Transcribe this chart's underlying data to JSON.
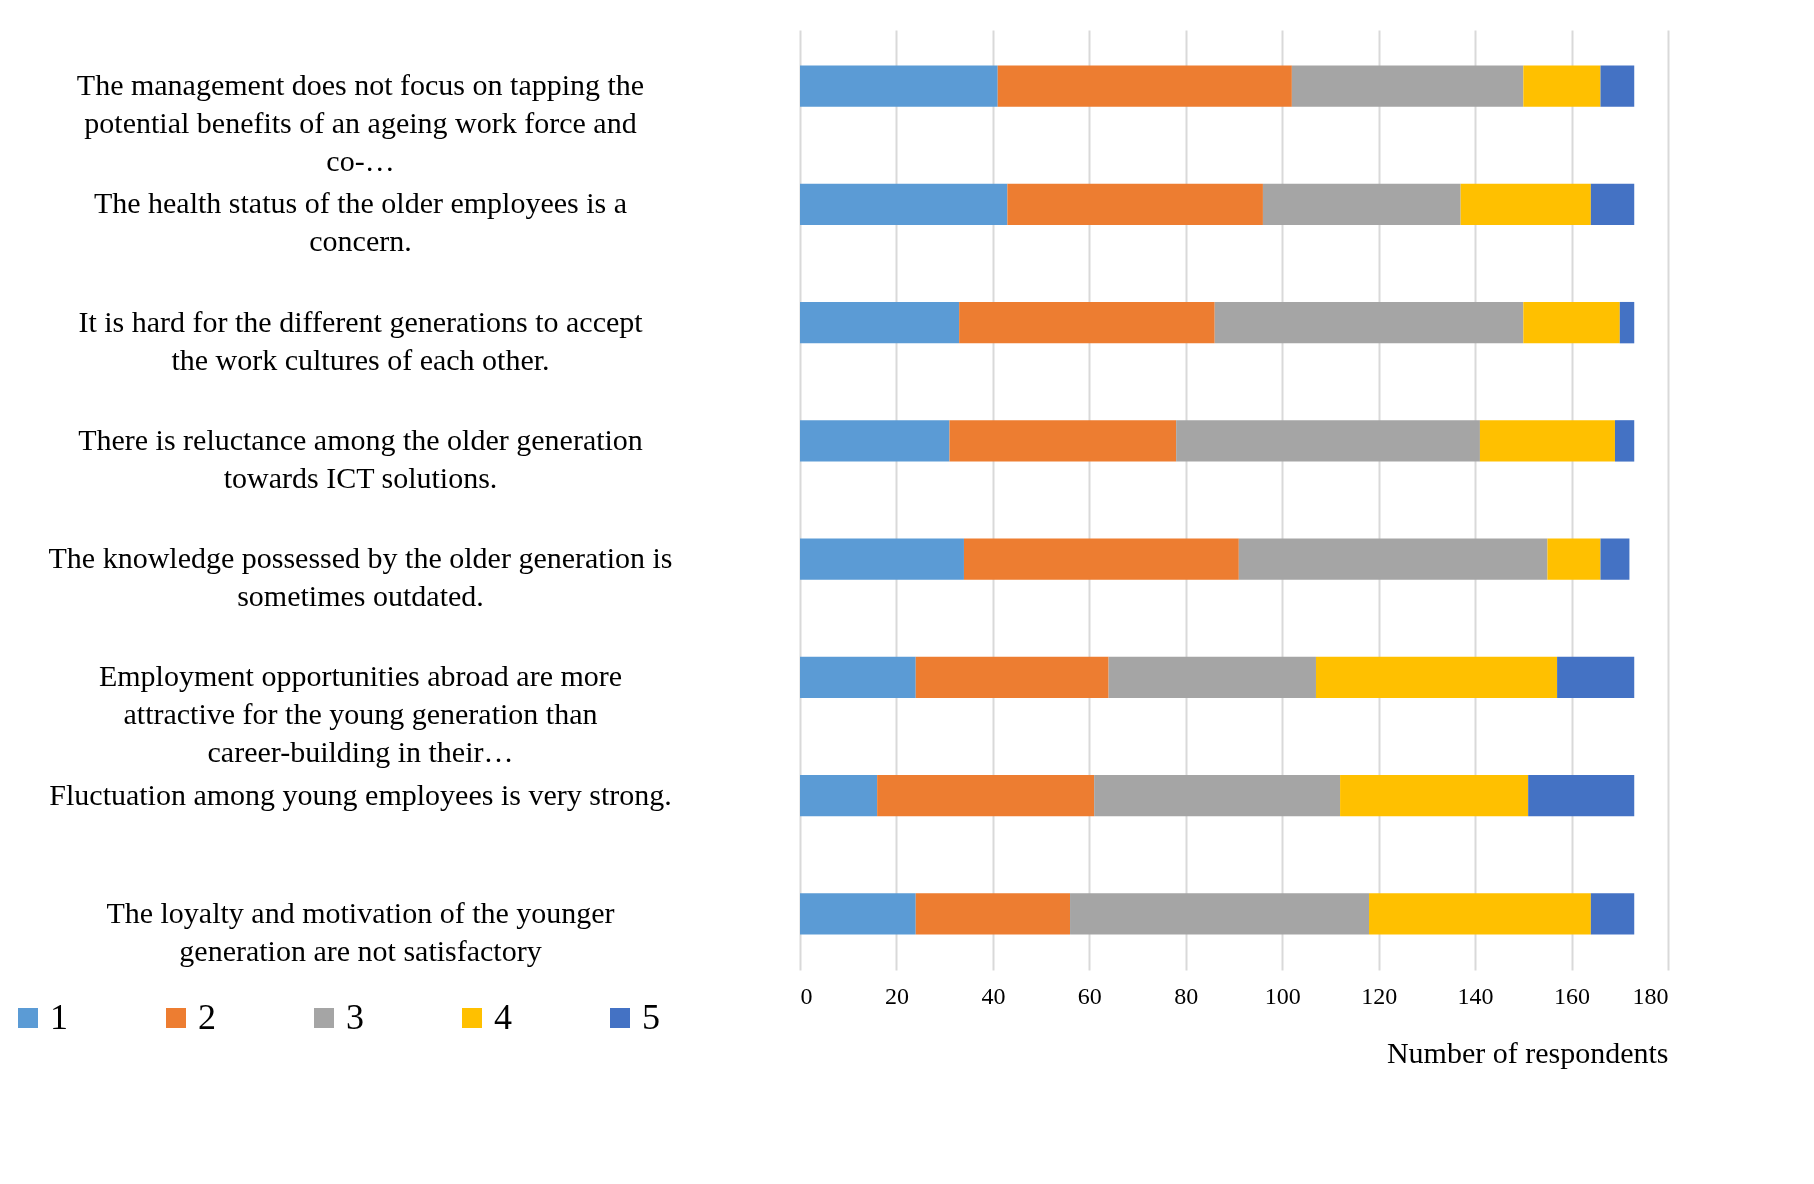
{
  "chart_data": {
    "type": "bar",
    "orientation": "horizontal",
    "stacked": true,
    "xlabel": "Number of respondents",
    "categories": [
      "The management does not focus on tapping the potential benefits of an ageing work force and co-…",
      "The health status of the older employees is a concern.",
      "It is hard for the different generations to accept the work cultures of each other.",
      "There is reluctance among the older generation towards ICT solutions.",
      "The knowledge possessed by the older generation is sometimes outdated.",
      "Employment opportunities abroad are more attractive for the young generation than career-building in their…",
      "Fluctuation among young employees is very strong.",
      "The loyalty and motivation of the younger generation are not satisfactory"
    ],
    "series": [
      {
        "name": "1",
        "color": "#5b9bd5",
        "values": [
          41,
          43,
          33,
          31,
          34,
          24,
          16,
          24
        ]
      },
      {
        "name": "2",
        "color": "#ed7d31",
        "values": [
          61,
          53,
          53,
          47,
          57,
          40,
          45,
          32
        ]
      },
      {
        "name": "3",
        "color": "#a5a5a5",
        "values": [
          48,
          41,
          64,
          63,
          64,
          43,
          51,
          62
        ]
      },
      {
        "name": "4",
        "color": "#ffc000",
        "values": [
          16,
          27,
          20,
          28,
          11,
          50,
          39,
          46
        ]
      },
      {
        "name": "5",
        "color": "#4472c4",
        "values": [
          7,
          9,
          3,
          4,
          6,
          16,
          22,
          9
        ]
      }
    ],
    "xlim": [
      0,
      180
    ],
    "xticks": [
      0,
      20,
      40,
      60,
      80,
      100,
      120,
      140,
      160,
      180
    ],
    "grid": "x",
    "legend": "bottom left"
  }
}
